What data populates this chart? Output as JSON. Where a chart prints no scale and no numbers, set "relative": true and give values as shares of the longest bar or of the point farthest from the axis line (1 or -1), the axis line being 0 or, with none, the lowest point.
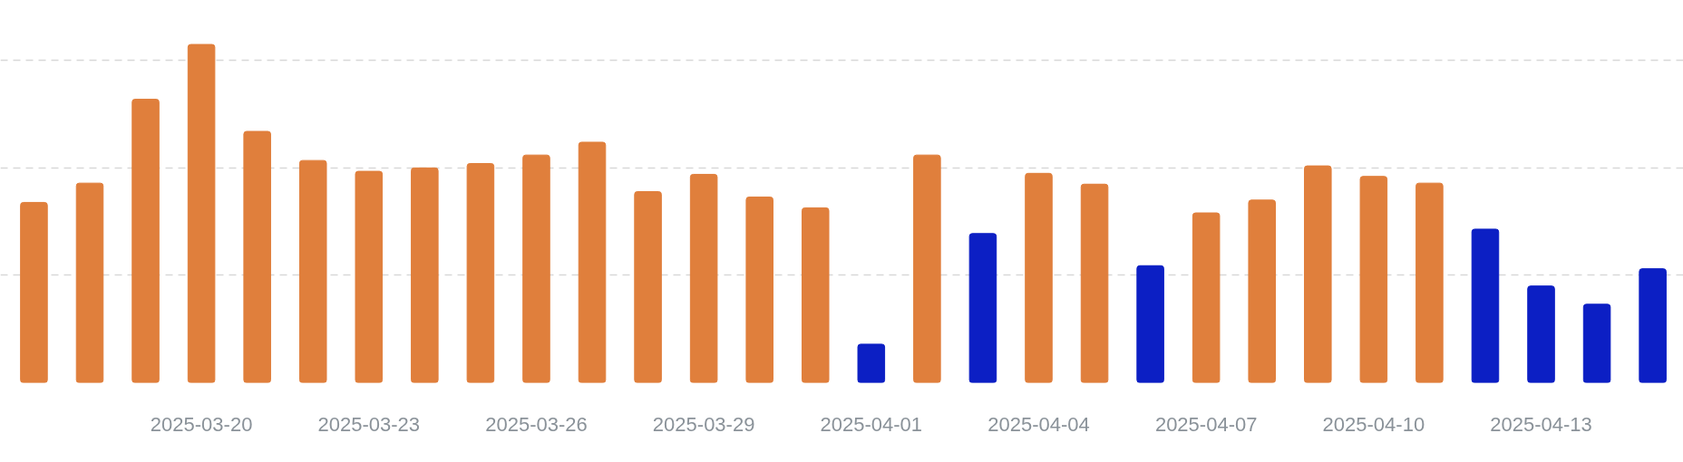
{
  "chart_data": {
    "type": "bar",
    "relative": true,
    "grid": "y",
    "categories": [
      null,
      null,
      null,
      "2025-03-20",
      null,
      null,
      "2025-03-23",
      null,
      null,
      "2025-03-26",
      null,
      null,
      "2025-03-29",
      null,
      null,
      "2025-04-01",
      null,
      null,
      "2025-04-04",
      null,
      null,
      "2025-04-07",
      null,
      null,
      "2025-04-10",
      null,
      null,
      "2025-04-13",
      null,
      null
    ],
    "values": [
      0.533,
      0.59,
      0.838,
      1,
      0.743,
      0.657,
      0.625,
      0.635,
      0.648,
      0.673,
      0.711,
      0.565,
      0.616,
      0.549,
      0.517,
      0.114,
      0.673,
      0.441,
      0.619,
      0.587,
      0.346,
      0.502,
      0.54,
      0.641,
      0.61,
      0.59,
      0.454,
      0.286,
      0.232,
      0.337
    ],
    "colors": [
      "#e07f3c",
      "#e07f3c",
      "#e07f3c",
      "#e07f3c",
      "#e07f3c",
      "#e07f3c",
      "#e07f3c",
      "#e07f3c",
      "#e07f3c",
      "#e07f3c",
      "#e07f3c",
      "#e07f3c",
      "#e07f3c",
      "#e07f3c",
      "#e07f3c",
      "#0c1fc4",
      "#e07f3c",
      "#0c1fc4",
      "#e07f3c",
      "#e07f3c",
      "#0c1fc4",
      "#e07f3c",
      "#e07f3c",
      "#e07f3c",
      "#e07f3c",
      "#e07f3c",
      "#0c1fc4",
      "#0c1fc4",
      "#0c1fc4",
      "#0c1fc4"
    ]
  }
}
